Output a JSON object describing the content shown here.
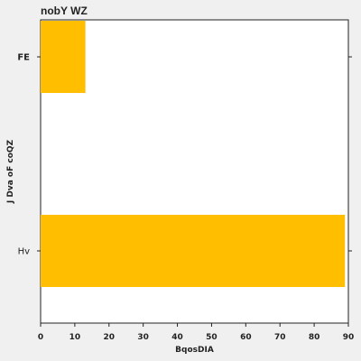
{
  "chart_data": {
    "type": "bar",
    "orientation": "horizontal",
    "title": "nobY WZ",
    "xlabel": "BqosDIA",
    "ylabel": "J Dva oF coQZ",
    "categories": [
      "FE",
      "Hv"
    ],
    "category_label_weights": [
      "bold",
      "normal"
    ],
    "values": [
      13.1,
      89.0
    ],
    "xlim": [
      0,
      90
    ],
    "xticks": [
      0,
      10,
      20,
      30,
      40,
      50,
      60,
      70,
      80,
      90
    ],
    "bar_color": "#ffbf00",
    "grid": false,
    "legend": "none"
  }
}
